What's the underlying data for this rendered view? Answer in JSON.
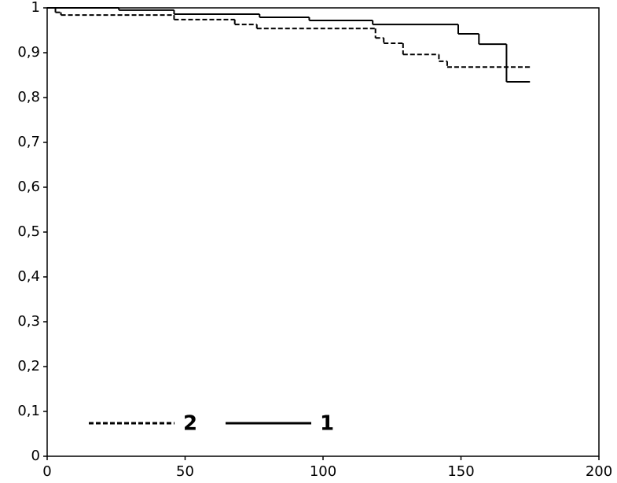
{
  "chart_data": {
    "type": "step",
    "xlim": [
      0,
      200
    ],
    "xticks": [
      0,
      50,
      100,
      150,
      200
    ],
    "ylim": [
      0,
      1
    ],
    "yticks": [
      0,
      {
        "value": 0.1,
        "label": "0,1"
      },
      {
        "value": 0.2,
        "label": "0,2"
      },
      {
        "value": 0.3,
        "label": "0,3"
      },
      {
        "value": 0.4,
        "label": "0,4"
      },
      {
        "value": 0.5,
        "label": "0,5"
      },
      {
        "value": 0.6,
        "label": "0,6"
      },
      {
        "value": 0.7,
        "label": "0,7"
      },
      {
        "value": 0.8,
        "label": "0,8"
      },
      {
        "value": 0.9,
        "label": "0,9"
      },
      1
    ],
    "series": [
      {
        "name": "2",
        "color": "#000000",
        "dash": true,
        "x": [
          0,
          3,
          5,
          46,
          68,
          76,
          119,
          122,
          129,
          142,
          145,
          175
        ],
        "values": [
          1,
          0.99,
          0.984,
          0.974,
          0.963,
          0.954,
          0.933,
          0.921,
          0.896,
          0.881,
          0.868,
          0.868
        ]
      },
      {
        "name": "1",
        "color": "#000000",
        "dash": false,
        "x": [
          0,
          26,
          46,
          77,
          95,
          118,
          149,
          156.5,
          166.5,
          175
        ],
        "values": [
          1,
          0.995,
          0.986,
          0.979,
          0.972,
          0.963,
          0.942,
          0.919,
          0.835,
          0.835
        ]
      }
    ]
  }
}
